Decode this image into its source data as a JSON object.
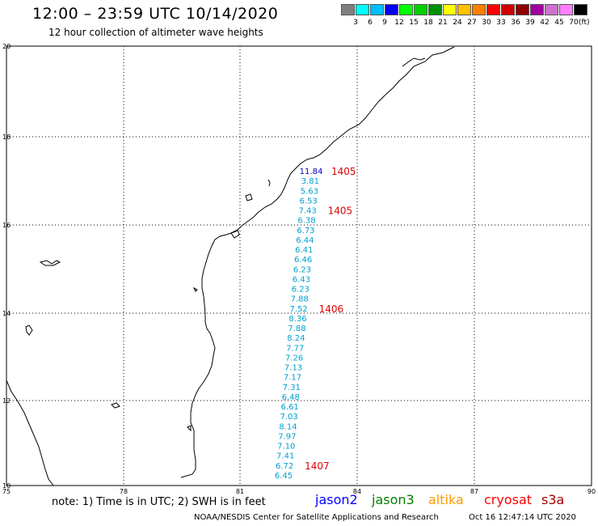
{
  "title": "12:00 – 23:59 UTC 10/14/2020",
  "subtitle": "12 hour collection of altimeter wave heights",
  "colorbar": {
    "unit": "(ft)",
    "swatches": [
      "#808080",
      "#00ffff",
      "#00bfff",
      "#0000ff",
      "#00ff00",
      "#00d000",
      "#009000",
      "#ffff00",
      "#ffc000",
      "#ff8000",
      "#ff0000",
      "#d00000",
      "#900000",
      "#a000a0",
      "#d070d0",
      "#ff80ff",
      "#000000"
    ],
    "labels": [
      "3",
      "6",
      "9",
      "12",
      "15",
      "18",
      "21",
      "24",
      "27",
      "30",
      "33",
      "36",
      "39",
      "42",
      "45",
      "70"
    ]
  },
  "map": {
    "lon_ticks": [
      "75",
      "78",
      "81",
      "84",
      "87",
      "90"
    ],
    "lat_ticks": [
      "20",
      "18",
      "16",
      "14",
      "12",
      "10"
    ]
  },
  "swh_colors": {
    "cyan": "#00a0d0",
    "blue": "#0000c0"
  },
  "swh": [
    {
      "v": "11.84",
      "c": "blue"
    },
    {
      "v": "3.81",
      "c": "cyan"
    },
    {
      "v": "5.63",
      "c": "cyan"
    },
    {
      "v": "6.53",
      "c": "cyan"
    },
    {
      "v": "7.43",
      "c": "cyan"
    },
    {
      "v": "6.38",
      "c": "cyan"
    },
    {
      "v": "6.73",
      "c": "cyan"
    },
    {
      "v": "6.44",
      "c": "cyan"
    },
    {
      "v": "6.41",
      "c": "cyan"
    },
    {
      "v": "6.46",
      "c": "cyan"
    },
    {
      "v": "6.23",
      "c": "cyan"
    },
    {
      "v": "6.43",
      "c": "cyan"
    },
    {
      "v": "6.23",
      "c": "cyan"
    },
    {
      "v": "7.88",
      "c": "cyan"
    },
    {
      "v": "7.52",
      "c": "cyan"
    },
    {
      "v": "8.36",
      "c": "cyan"
    },
    {
      "v": "7.88",
      "c": "cyan"
    },
    {
      "v": "8.24",
      "c": "cyan"
    },
    {
      "v": "7.77",
      "c": "cyan"
    },
    {
      "v": "7.26",
      "c": "cyan"
    },
    {
      "v": "7.13",
      "c": "cyan"
    },
    {
      "v": "7.17",
      "c": "cyan"
    },
    {
      "v": "7.31",
      "c": "cyan"
    },
    {
      "v": "6.48",
      "c": "cyan"
    },
    {
      "v": "6.61",
      "c": "cyan"
    },
    {
      "v": "7.03",
      "c": "cyan"
    },
    {
      "v": "8.14",
      "c": "cyan"
    },
    {
      "v": "7.97",
      "c": "cyan"
    },
    {
      "v": "7.10",
      "c": "cyan"
    },
    {
      "v": "7.41",
      "c": "cyan"
    },
    {
      "v": "6.72",
      "c": "cyan"
    },
    {
      "v": "6.45",
      "c": "cyan"
    }
  ],
  "time_labels": [
    {
      "t": "1405",
      "row": 0
    },
    {
      "t": "1405",
      "row": 4
    },
    {
      "t": "1406",
      "row": 14
    },
    {
      "t": "1407",
      "row": 30
    }
  ],
  "note": "note: 1) Time is in UTC; 2) SWH is in feet",
  "missions": [
    {
      "name": "jason2",
      "color": "#0000ff"
    },
    {
      "name": "jason3",
      "color": "#008000"
    },
    {
      "name": "altika",
      "color": "#ff9900"
    },
    {
      "name": "cryosat",
      "color": "#ff0000"
    },
    {
      "name": "s3a",
      "color": "#a00000"
    }
  ],
  "credit": "NOAA/NESDIS Center for Satellite Applications and Research",
  "timestamp": "Oct 16 12:47:14 UTC 2020"
}
